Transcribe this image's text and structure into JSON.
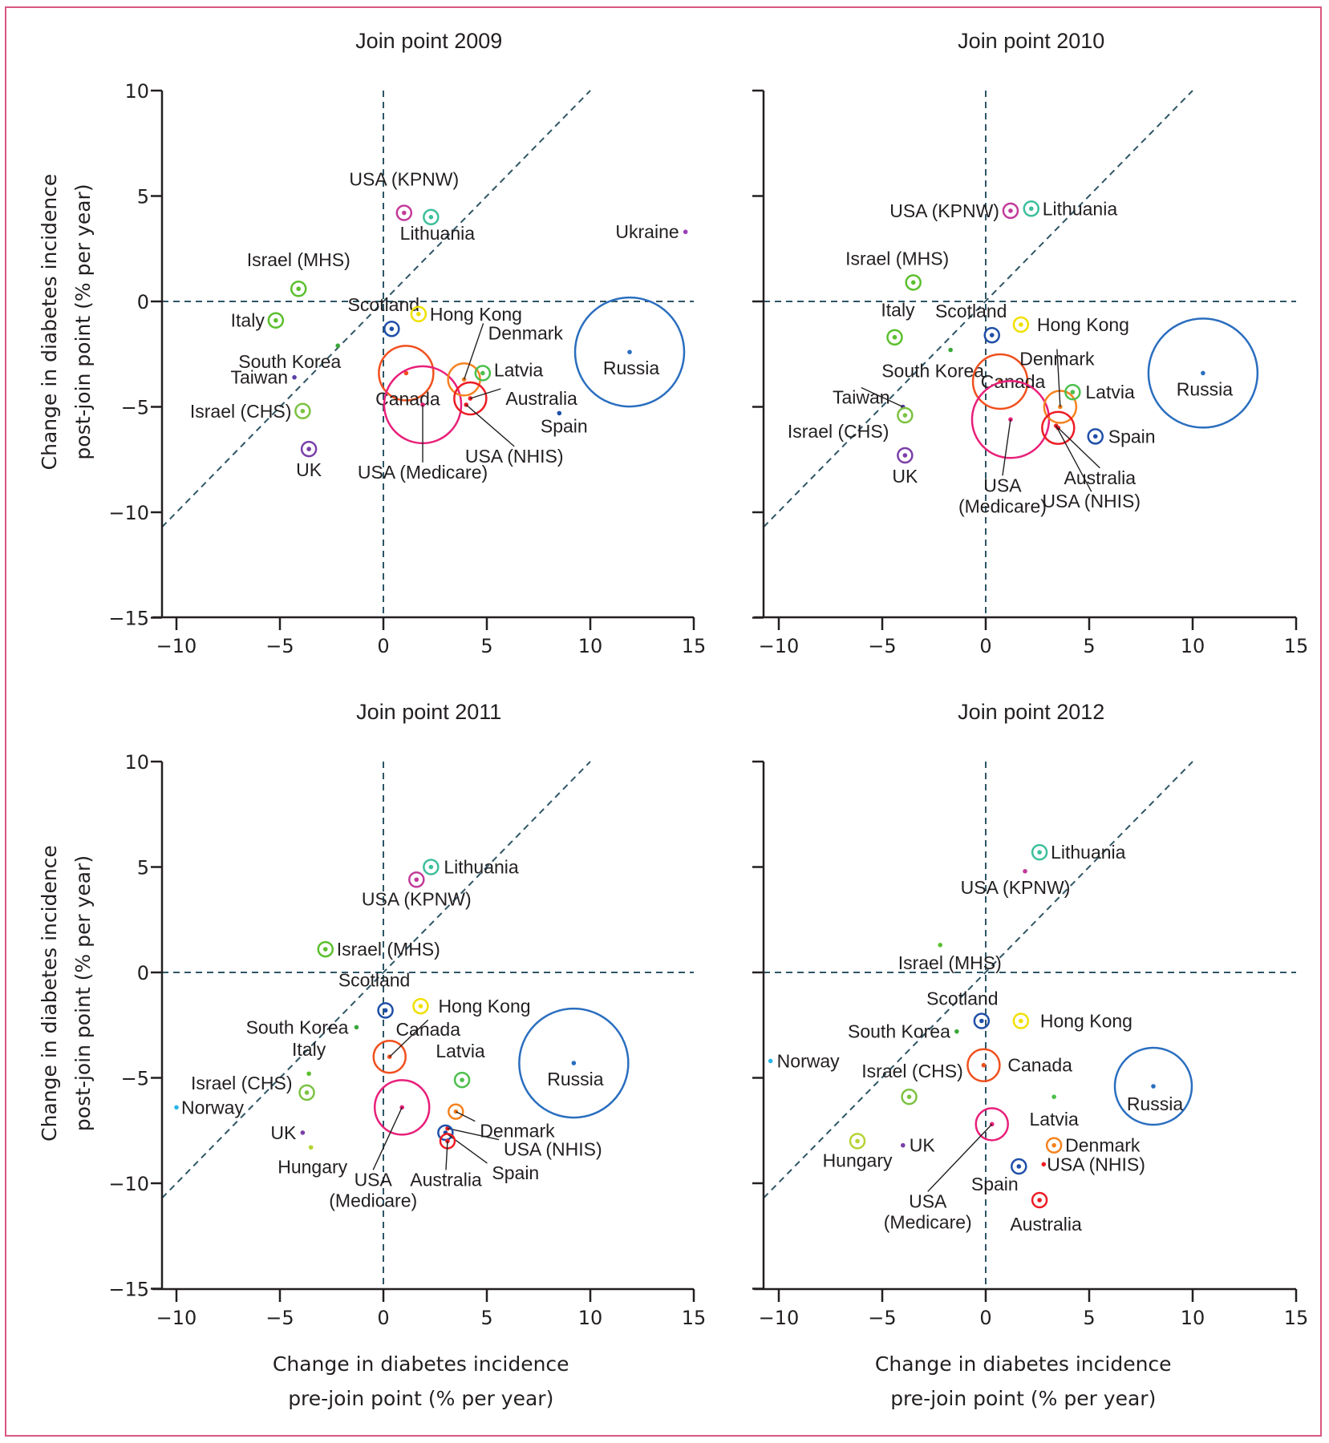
{
  "figure": {
    "border_color": "#d9577f",
    "reference_line_color": "#2e5566"
  },
  "chart_data": [
    {
      "type": "scatter",
      "title": "Join point 2009",
      "xlabel": "",
      "ylabel": "Change in diabetes incidence post-join point (% per year)",
      "xlim": [
        -10.7,
        15
      ],
      "ylim": [
        -15,
        10
      ],
      "xticks": [
        -10,
        -5,
        0,
        5,
        10,
        15
      ],
      "yticks": [
        10,
        5,
        0,
        -5,
        -10,
        -15
      ],
      "reference_lines": [
        "x = 0",
        "y = 0",
        "y = x"
      ],
      "points": [
        {
          "name": "USA (KPNW)",
          "x": 1.0,
          "y": 4.2,
          "size": "small",
          "color": "#c23b9a"
        },
        {
          "name": "Lithuania",
          "x": 2.3,
          "y": 4.0,
          "size": "small",
          "color": "#3dbf9b"
        },
        {
          "name": "Ukraine",
          "x": 14.6,
          "y": 3.3,
          "size": "dot",
          "color": "#9b3fb5"
        },
        {
          "name": "Israel (MHS)",
          "x": -4.1,
          "y": 0.6,
          "size": "small",
          "color": "#5bbf2e"
        },
        {
          "name": "Italy",
          "x": -5.2,
          "y": -0.9,
          "size": "small",
          "color": "#5bbf2e"
        },
        {
          "name": "Scotland",
          "x": 0.4,
          "y": -1.3,
          "size": "small",
          "color": "#1f4fa8"
        },
        {
          "name": "Hong Kong",
          "x": 1.7,
          "y": -0.6,
          "size": "small",
          "color": "#f0e000"
        },
        {
          "name": "South Korea",
          "x": -2.2,
          "y": -2.1,
          "size": "dot",
          "color": "#3aa83a"
        },
        {
          "name": "Taiwan",
          "x": -4.3,
          "y": -3.6,
          "size": "dot",
          "color": "#5b3fa8"
        },
        {
          "name": "Canada",
          "x": 1.1,
          "y": -3.4,
          "size": "large",
          "color": "#f0501e"
        },
        {
          "name": "USA (Medicare)",
          "x": 1.9,
          "y": -4.9,
          "size": "xlarge",
          "color": "#e8207a"
        },
        {
          "name": "Denmark",
          "x": 3.9,
          "y": -3.7,
          "size": "medium",
          "color": "#f5821f"
        },
        {
          "name": "Latvia",
          "x": 4.8,
          "y": -3.4,
          "size": "small",
          "color": "#4cbf4c"
        },
        {
          "name": "Australia",
          "x": 4.2,
          "y": -4.6,
          "size": "medium",
          "color": "#ed1c24"
        },
        {
          "name": "USA (NHIS)",
          "x": 4.0,
          "y": -4.9,
          "size": "dot",
          "color": "#ed1c24"
        },
        {
          "name": "Spain",
          "x": 8.5,
          "y": -5.3,
          "size": "dot",
          "color": "#1f4fa8"
        },
        {
          "name": "Russia",
          "x": 11.9,
          "y": -2.4,
          "size": "xxlarge",
          "color": "#2a6ebf"
        },
        {
          "name": "Israel (CHS)",
          "x": -3.9,
          "y": -5.2,
          "size": "small",
          "color": "#7cc242"
        },
        {
          "name": "UK",
          "x": -3.6,
          "y": -7.0,
          "size": "small",
          "color": "#7b3fa8"
        }
      ]
    },
    {
      "type": "scatter",
      "title": "Join point 2010",
      "xlabel": "",
      "ylabel": "",
      "xlim": [
        -10.7,
        15
      ],
      "ylim": [
        -15,
        10
      ],
      "xticks": [
        -10,
        -5,
        0,
        5,
        10,
        15
      ],
      "yticks": [
        10,
        5,
        0,
        -5,
        -10,
        -15
      ],
      "reference_lines": [
        "x = 0",
        "y = 0",
        "y = x"
      ],
      "points": [
        {
          "name": "USA (KPNW)",
          "x": 1.2,
          "y": 4.3,
          "size": "small",
          "color": "#c23b9a"
        },
        {
          "name": "Lithuania",
          "x": 2.2,
          "y": 4.4,
          "size": "small",
          "color": "#3dbf9b"
        },
        {
          "name": "Israel (MHS)",
          "x": -3.5,
          "y": 0.9,
          "size": "small",
          "color": "#5bbf2e"
        },
        {
          "name": "Italy",
          "x": -4.4,
          "y": -1.7,
          "size": "small",
          "color": "#5bbf2e"
        },
        {
          "name": "Scotland",
          "x": 0.3,
          "y": -1.6,
          "size": "small",
          "color": "#1f4fa8"
        },
        {
          "name": "Hong Kong",
          "x": 1.7,
          "y": -1.1,
          "size": "small",
          "color": "#f0e000"
        },
        {
          "name": "South Korea",
          "x": -1.7,
          "y": -2.3,
          "size": "dot",
          "color": "#3aa83a"
        },
        {
          "name": "Canada",
          "x": 0.7,
          "y": -3.8,
          "size": "large",
          "color": "#f0501e"
        },
        {
          "name": "USA (Medicare)",
          "x": 1.2,
          "y": -5.6,
          "size": "xlarge",
          "color": "#e8207a"
        },
        {
          "name": "Denmark",
          "x": 3.6,
          "y": -5.0,
          "size": "medium",
          "color": "#f5821f"
        },
        {
          "name": "Latvia",
          "x": 4.2,
          "y": -4.3,
          "size": "small",
          "color": "#4cbf4c"
        },
        {
          "name": "Australia",
          "x": 3.5,
          "y": -6.0,
          "size": "medium",
          "color": "#ed1c24"
        },
        {
          "name": "USA (NHIS)",
          "x": 3.4,
          "y": -5.9,
          "size": "dot",
          "color": "#ed1c24"
        },
        {
          "name": "Spain",
          "x": 5.3,
          "y": -6.4,
          "size": "small",
          "color": "#1f4fa8"
        },
        {
          "name": "Russia",
          "x": 10.5,
          "y": -3.4,
          "size": "xxlarge",
          "color": "#2a6ebf"
        },
        {
          "name": "Taiwan",
          "x": -4.0,
          "y": -5.0,
          "size": "dot",
          "color": "#5b3fa8"
        },
        {
          "name": "Israel (CHS)",
          "x": -3.9,
          "y": -5.4,
          "size": "small",
          "color": "#7cc242"
        },
        {
          "name": "UK",
          "x": -3.9,
          "y": -7.3,
          "size": "small",
          "color": "#7b3fa8"
        }
      ]
    },
    {
      "type": "scatter",
      "title": "Join point 2011",
      "xlabel": "Change in diabetes incidence pre-join point (% per year)",
      "ylabel": "Change in diabetes incidence post-join point (% per year)",
      "xlim": [
        -10.7,
        15
      ],
      "ylim": [
        -15,
        10
      ],
      "xticks": [
        -10,
        -5,
        0,
        5,
        10,
        15
      ],
      "yticks": [
        10,
        5,
        0,
        -5,
        -10,
        -15
      ],
      "reference_lines": [
        "x = 0",
        "y = 0",
        "y = x"
      ],
      "points": [
        {
          "name": "Lithuania",
          "x": 2.3,
          "y": 5.0,
          "size": "small",
          "color": "#3dbf9b"
        },
        {
          "name": "USA (KPNW)",
          "x": 1.6,
          "y": 4.4,
          "size": "small",
          "color": "#c23b9a"
        },
        {
          "name": "Israel (MHS)",
          "x": -2.8,
          "y": 1.1,
          "size": "small",
          "color": "#5bbf2e"
        },
        {
          "name": "Scotland",
          "x": 0.1,
          "y": -1.8,
          "size": "small",
          "color": "#1f4fa8"
        },
        {
          "name": "Hong Kong",
          "x": 1.8,
          "y": -1.6,
          "size": "small",
          "color": "#f0e000"
        },
        {
          "name": "South Korea",
          "x": -1.3,
          "y": -2.6,
          "size": "dot",
          "color": "#3aa83a"
        },
        {
          "name": "Canada",
          "x": 0.3,
          "y": -4.0,
          "size": "medium",
          "color": "#f0501e"
        },
        {
          "name": "Italy",
          "x": -3.6,
          "y": -4.8,
          "size": "dot",
          "color": "#5bbf2e"
        },
        {
          "name": "Israel (CHS)",
          "x": -3.7,
          "y": -5.7,
          "size": "small",
          "color": "#7cc242"
        },
        {
          "name": "Norway",
          "x": -10.0,
          "y": -6.4,
          "size": "dot",
          "color": "#29b6e8"
        },
        {
          "name": "UK",
          "x": -3.9,
          "y": -7.6,
          "size": "dot",
          "color": "#7b3fa8"
        },
        {
          "name": "Hungary",
          "x": -3.5,
          "y": -8.3,
          "size": "dot",
          "color": "#b5d334"
        },
        {
          "name": "USA (Medicare)",
          "x": 0.9,
          "y": -6.4,
          "size": "large",
          "color": "#e8207a"
        },
        {
          "name": "Latvia",
          "x": 3.8,
          "y": -5.1,
          "size": "small",
          "color": "#4cbf4c"
        },
        {
          "name": "Denmark",
          "x": 3.5,
          "y": -6.6,
          "size": "small",
          "color": "#f5821f"
        },
        {
          "name": "USA (NHIS)",
          "x": 3.1,
          "y": -7.4,
          "size": "dot",
          "color": "#ed1c24"
        },
        {
          "name": "Spain",
          "x": 3.0,
          "y": -7.6,
          "size": "small",
          "color": "#1f4fa8"
        },
        {
          "name": "Australia",
          "x": 3.1,
          "y": -8.0,
          "size": "small",
          "color": "#ed1c24"
        },
        {
          "name": "Russia",
          "x": 9.2,
          "y": -4.3,
          "size": "xxlarge",
          "color": "#2a6ebf"
        }
      ]
    },
    {
      "type": "scatter",
      "title": "Join point 2012",
      "xlabel": "Change in diabetes incidence pre-join point (% per year)",
      "ylabel": "",
      "xlim": [
        -10.7,
        15
      ],
      "ylim": [
        -15,
        10
      ],
      "xticks": [
        -10,
        -5,
        0,
        5,
        10,
        15
      ],
      "yticks": [
        10,
        5,
        0,
        -5,
        -10,
        -15
      ],
      "reference_lines": [
        "x = 0",
        "y = 0",
        "y = x"
      ],
      "points": [
        {
          "name": "Lithuania",
          "x": 2.6,
          "y": 5.7,
          "size": "small",
          "color": "#3dbf9b"
        },
        {
          "name": "USA (KPNW)",
          "x": 1.9,
          "y": 4.8,
          "size": "dot",
          "color": "#c23b9a"
        },
        {
          "name": "Israel (MHS)",
          "x": -2.2,
          "y": 1.3,
          "size": "dot",
          "color": "#5bbf2e"
        },
        {
          "name": "Scotland",
          "x": -0.2,
          "y": -2.3,
          "size": "small",
          "color": "#1f4fa8"
        },
        {
          "name": "Hong Kong",
          "x": 1.7,
          "y": -2.3,
          "size": "small",
          "color": "#f0e000"
        },
        {
          "name": "South Korea",
          "x": -1.4,
          "y": -2.8,
          "size": "dot",
          "color": "#3aa83a"
        },
        {
          "name": "Norway",
          "x": -10.4,
          "y": -4.2,
          "size": "dot",
          "color": "#29b6e8"
        },
        {
          "name": "Canada",
          "x": -0.1,
          "y": -4.4,
          "size": "medium",
          "color": "#f0501e"
        },
        {
          "name": "Israel (CHS)",
          "x": -3.7,
          "y": -5.9,
          "size": "small",
          "color": "#7cc242"
        },
        {
          "name": "Latvia",
          "x": 3.3,
          "y": -5.9,
          "size": "dot",
          "color": "#4cbf4c"
        },
        {
          "name": "Russia",
          "x": 8.1,
          "y": -5.4,
          "size": "xlarge",
          "color": "#2a6ebf"
        },
        {
          "name": "USA (Medicare)",
          "x": 0.3,
          "y": -7.2,
          "size": "medium",
          "color": "#e8207a"
        },
        {
          "name": "Hungary",
          "x": -6.2,
          "y": -8.0,
          "size": "small",
          "color": "#b5d334"
        },
        {
          "name": "UK",
          "x": -4.0,
          "y": -8.2,
          "size": "dot",
          "color": "#7b3fa8"
        },
        {
          "name": "Denmark",
          "x": 3.3,
          "y": -8.2,
          "size": "small",
          "color": "#f5821f"
        },
        {
          "name": "USA (NHIS)",
          "x": 2.8,
          "y": -9.1,
          "size": "dot",
          "color": "#ed1c24"
        },
        {
          "name": "Spain",
          "x": 1.6,
          "y": -9.2,
          "size": "small",
          "color": "#1f4fa8"
        },
        {
          "name": "Australia",
          "x": 2.6,
          "y": -10.8,
          "size": "small",
          "color": "#ed1c24"
        }
      ]
    }
  ]
}
